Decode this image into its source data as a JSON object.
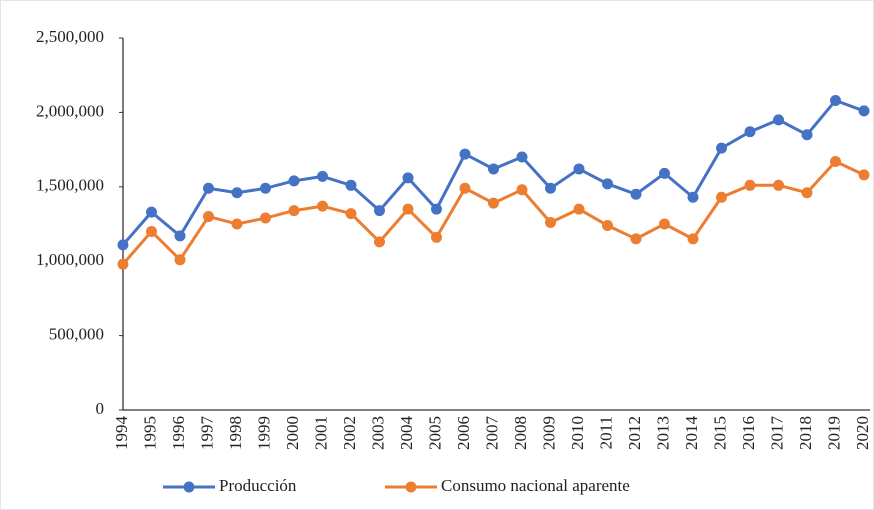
{
  "chart_data": {
    "type": "line",
    "categories": [
      "1994",
      "1995",
      "1996",
      "1997",
      "1998",
      "1999",
      "2000",
      "2001",
      "2002",
      "2003",
      "2004",
      "2005",
      "2006",
      "2007",
      "2008",
      "2009",
      "2010",
      "2011",
      "2012",
      "2013",
      "2014",
      "2015",
      "2016",
      "2017",
      "2018",
      "2019",
      "2020"
    ],
    "series": [
      {
        "name": "Producción",
        "color": "#4472c4",
        "values": [
          1110000,
          1330000,
          1170000,
          1490000,
          1460000,
          1490000,
          1540000,
          1570000,
          1510000,
          1340000,
          1560000,
          1350000,
          1720000,
          1620000,
          1700000,
          1490000,
          1620000,
          1520000,
          1450000,
          1590000,
          1430000,
          1760000,
          1870000,
          1950000,
          1850000,
          2080000,
          2010000
        ]
      },
      {
        "name": "Consumo nacional aparente",
        "color": "#ed7d31",
        "values": [
          980000,
          1200000,
          1010000,
          1300000,
          1250000,
          1290000,
          1340000,
          1370000,
          1320000,
          1130000,
          1350000,
          1160000,
          1490000,
          1390000,
          1480000,
          1260000,
          1350000,
          1240000,
          1150000,
          1250000,
          1150000,
          1430000,
          1510000,
          1510000,
          1460000,
          1670000,
          1580000
        ]
      }
    ],
    "ylim": [
      0,
      2500000
    ],
    "yticks": [
      0,
      {
        "value": 500000,
        "label": "500,000"
      },
      {
        "value": 1000000,
        "label": "1,000,000"
      },
      {
        "value": 1500000,
        "label": "1,500,000"
      },
      {
        "value": 2000000,
        "label": "2,000,000"
      },
      {
        "value": 2500000,
        "label": "2,500,000"
      }
    ],
    "grid": false,
    "legend": "bottom"
  }
}
